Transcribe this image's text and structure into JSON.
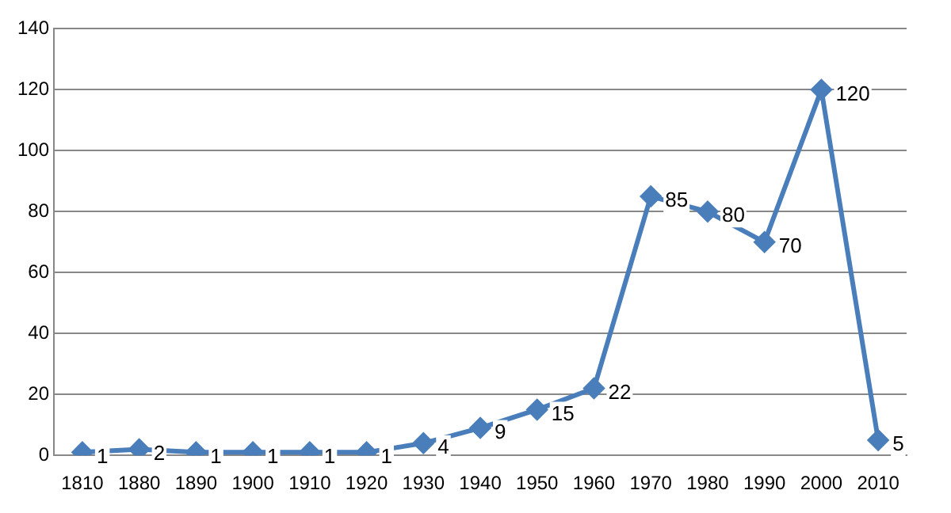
{
  "chart_data": {
    "type": "line",
    "categories": [
      "1810",
      "1880",
      "1890",
      "1900",
      "1910",
      "1920",
      "1930",
      "1940",
      "1950",
      "1960",
      "1970",
      "1980",
      "1990",
      "2000",
      "2010"
    ],
    "series": [
      {
        "color": "#4a7ebb",
        "values": [
          1,
          2,
          1,
          1,
          1,
          1,
          4,
          9,
          15,
          22,
          85,
          80,
          70,
          120,
          5
        ]
      }
    ],
    "ylim": [
      0,
      140
    ],
    "yticks": [
      0,
      20,
      40,
      60,
      80,
      100,
      120,
      140
    ],
    "grid": "y",
    "legend": false,
    "marker": "diamond",
    "line_style": "solid",
    "data_labels": true
  }
}
